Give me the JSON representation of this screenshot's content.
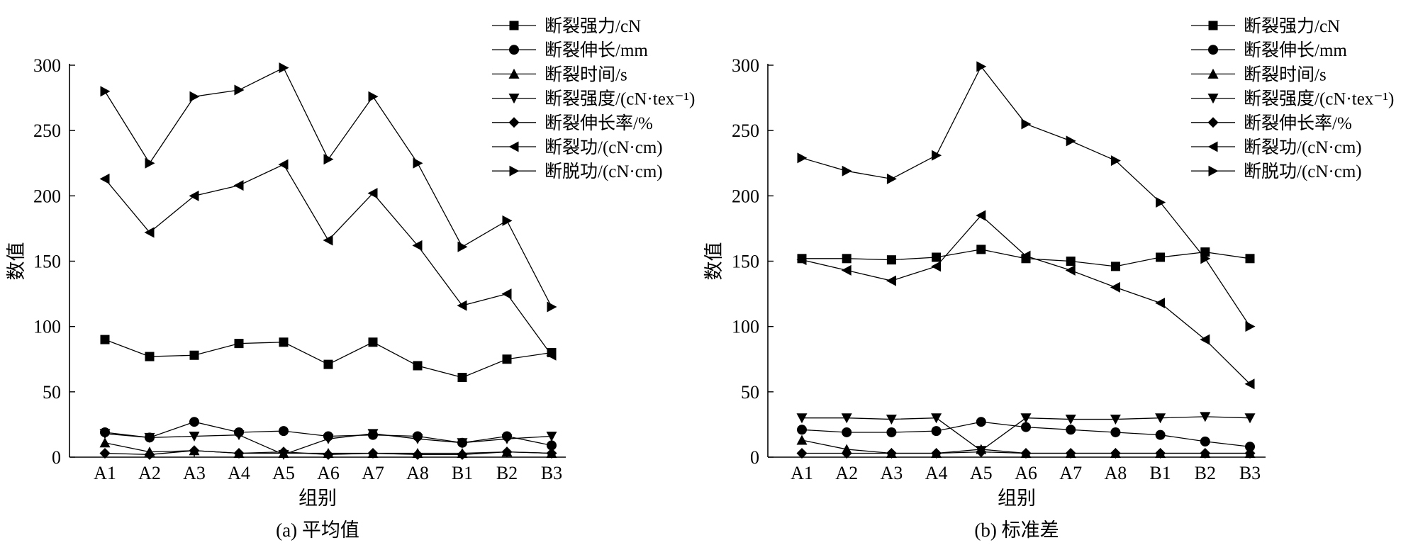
{
  "chart_data": [
    {
      "type": "line",
      "caption": "(a) 平均值",
      "xlabel": "组别",
      "ylabel": "数值",
      "categories": [
        "A1",
        "A2",
        "A3",
        "A4",
        "A5",
        "A6",
        "A7",
        "A8",
        "B1",
        "B2",
        "B3"
      ],
      "ylim": [
        0,
        300
      ],
      "yticks": [
        0,
        50,
        100,
        150,
        200,
        250,
        300
      ],
      "legend_position": "top-right",
      "series": [
        {
          "name": "断裂强力/cN",
          "marker": "square",
          "values": [
            90,
            77,
            78,
            87,
            88,
            71,
            88,
            70,
            61,
            75,
            80
          ]
        },
        {
          "name": "断裂伸长/mm",
          "marker": "circle",
          "values": [
            19,
            15,
            27,
            19,
            20,
            16,
            17,
            16,
            11,
            16,
            9
          ]
        },
        {
          "name": "断裂时间/s",
          "marker": "triangle-up",
          "values": [
            11,
            4,
            5,
            3,
            3,
            3,
            3,
            3,
            3,
            4,
            3
          ]
        },
        {
          "name": "断裂强度/(cN·tex⁻¹)",
          "marker": "triangle-down",
          "values": [
            18,
            15,
            16,
            17,
            2,
            14,
            18,
            14,
            11,
            14,
            16
          ]
        },
        {
          "name": "断裂伸长率/%",
          "marker": "diamond",
          "values": [
            3,
            2,
            5,
            3,
            4,
            2,
            3,
            2,
            2,
            4,
            3
          ]
        },
        {
          "name": "断裂功/(cN·cm)",
          "marker": "triangle-left",
          "values": [
            213,
            172,
            200,
            208,
            224,
            166,
            202,
            162,
            116,
            125,
            78
          ]
        },
        {
          "name": "断脱功/(cN·cm)",
          "marker": "triangle-right",
          "values": [
            280,
            225,
            276,
            281,
            298,
            228,
            276,
            225,
            161,
            181,
            115
          ]
        }
      ]
    },
    {
      "type": "line",
      "caption": "(b) 标准差",
      "xlabel": "组别",
      "ylabel": "数值",
      "categories": [
        "A1",
        "A2",
        "A3",
        "A4",
        "A5",
        "A6",
        "A7",
        "A8",
        "B1",
        "B2",
        "B3"
      ],
      "ylim": [
        0,
        300
      ],
      "yticks": [
        0,
        50,
        100,
        150,
        200,
        250,
        300
      ],
      "legend_position": "top-right",
      "series": [
        {
          "name": "断裂强力/cN",
          "marker": "square",
          "values": [
            152,
            152,
            151,
            153,
            159,
            152,
            150,
            146,
            153,
            157,
            152
          ]
        },
        {
          "name": "断裂伸长/mm",
          "marker": "circle",
          "values": [
            21,
            19,
            19,
            20,
            27,
            23,
            21,
            19,
            17,
            12,
            8
          ]
        },
        {
          "name": "断裂时间/s",
          "marker": "triangle-up",
          "values": [
            13,
            6,
            3,
            3,
            6,
            3,
            3,
            3,
            3,
            3,
            3
          ]
        },
        {
          "name": "断裂强度/(cN·tex⁻¹)",
          "marker": "triangle-down",
          "values": [
            30,
            30,
            29,
            30,
            5,
            30,
            29,
            29,
            30,
            31,
            30
          ]
        },
        {
          "name": "断裂伸长率/%",
          "marker": "diamond",
          "values": [
            3,
            3,
            3,
            3,
            4,
            3,
            3,
            3,
            3,
            3,
            3
          ]
        },
        {
          "name": "断裂功/(cN·cm)",
          "marker": "triangle-left",
          "values": [
            151,
            143,
            135,
            146,
            185,
            154,
            143,
            130,
            118,
            90,
            56
          ]
        },
        {
          "name": "断脱功/(cN·cm)",
          "marker": "triangle-right",
          "values": [
            229,
            219,
            213,
            231,
            299,
            255,
            242,
            227,
            195,
            152,
            100
          ]
        }
      ]
    }
  ]
}
